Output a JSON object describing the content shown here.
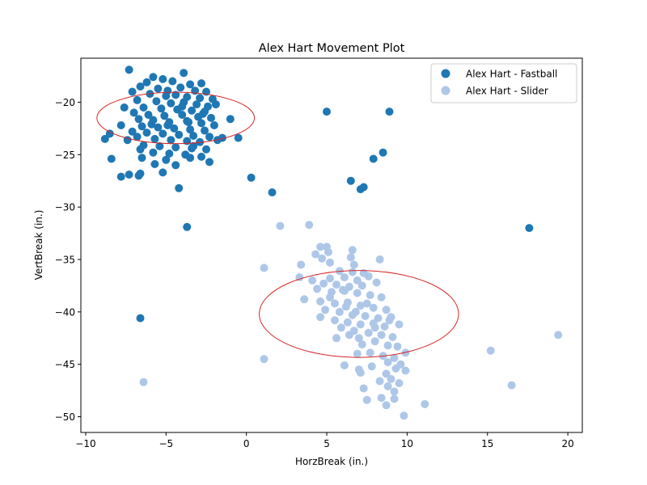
{
  "chart_data": {
    "type": "scatter",
    "title": "Alex Hart Movement Plot",
    "xlabel": "HorzBreak (in.)",
    "ylabel": "VertBreak (in.)",
    "xlim": [
      -10.3,
      20.9
    ],
    "ylim": [
      -51.5,
      -15.8
    ],
    "xticks": [
      -10,
      -5,
      0,
      5,
      10,
      15,
      20
    ],
    "yticks": [
      -50,
      -45,
      -40,
      -35,
      -30,
      -25,
      -20
    ],
    "grid": false,
    "legend_position": "top-right",
    "colors": {
      "fastball": "#1f77b4",
      "slider": "#aec7e8",
      "ellipse": "#d62728"
    },
    "ellipses": [
      {
        "series": "Alex Hart - Fastball",
        "center": [
          -4.4,
          -21.5
        ],
        "width": 4.9,
        "height": 4.9
      },
      {
        "series": "Alex Hart - Slider",
        "center": [
          7.0,
          -40.2
        ],
        "width": 6.2,
        "height": 8.3
      }
    ],
    "series": [
      {
        "name": "Alex Hart - Fastball",
        "color": "#1f77b4",
        "points": [
          [
            -7.3,
            -16.9
          ],
          [
            -3.9,
            -17.2
          ],
          [
            -5.8,
            -17.6
          ],
          [
            -5.2,
            -17.8
          ],
          [
            -6.2,
            -18.1
          ],
          [
            -4.6,
            -18.0
          ],
          [
            -3.5,
            -18.3
          ],
          [
            -2.8,
            -18.2
          ],
          [
            -6.6,
            -18.5
          ],
          [
            -5.5,
            -18.7
          ],
          [
            -4.9,
            -18.9
          ],
          [
            -4.1,
            -18.6
          ],
          [
            -3.2,
            -18.9
          ],
          [
            -2.5,
            -19.0
          ],
          [
            -7.1,
            -19.0
          ],
          [
            -6.0,
            -19.2
          ],
          [
            -5.0,
            -19.4
          ],
          [
            -4.4,
            -19.3
          ],
          [
            -3.7,
            -19.5
          ],
          [
            -2.9,
            -19.6
          ],
          [
            -2.1,
            -19.7
          ],
          [
            -6.8,
            -19.8
          ],
          [
            -5.6,
            -19.9
          ],
          [
            -4.7,
            -20.1
          ],
          [
            -3.9,
            -20.0
          ],
          [
            -3.1,
            -20.2
          ],
          [
            -2.4,
            -20.4
          ],
          [
            -7.6,
            -20.5
          ],
          [
            -6.4,
            -20.5
          ],
          [
            -5.3,
            -20.6
          ],
          [
            -4.3,
            -20.7
          ],
          [
            -3.4,
            -20.8
          ],
          [
            -2.6,
            -20.9
          ],
          [
            -1.9,
            -20.2
          ],
          [
            -7.0,
            -21.0
          ],
          [
            -6.1,
            -21.2
          ],
          [
            -5.1,
            -21.3
          ],
          [
            -4.0,
            -21.2
          ],
          [
            -3.0,
            -21.4
          ],
          [
            -2.2,
            -21.5
          ],
          [
            -6.7,
            -21.6
          ],
          [
            -5.8,
            -21.7
          ],
          [
            -4.8,
            -21.9
          ],
          [
            -3.7,
            -21.8
          ],
          [
            -2.8,
            -22.0
          ],
          [
            -2.0,
            -22.2
          ],
          [
            -7.8,
            -22.2
          ],
          [
            -6.5,
            -22.3
          ],
          [
            -5.5,
            -22.4
          ],
          [
            -4.5,
            -22.5
          ],
          [
            -3.5,
            -22.6
          ],
          [
            -2.6,
            -22.7
          ],
          [
            -7.1,
            -22.8
          ],
          [
            -6.2,
            -22.9
          ],
          [
            -5.2,
            -23.0
          ],
          [
            -4.2,
            -23.1
          ],
          [
            -3.3,
            -23.2
          ],
          [
            -2.3,
            -23.3
          ],
          [
            -8.5,
            -23.0
          ],
          [
            -6.8,
            -23.3
          ],
          [
            -5.7,
            -23.5
          ],
          [
            -4.7,
            -23.6
          ],
          [
            -3.7,
            -23.7
          ],
          [
            -2.9,
            -23.8
          ],
          [
            -1.8,
            -23.6
          ],
          [
            -7.4,
            -23.6
          ],
          [
            -6.4,
            -24.1
          ],
          [
            -5.4,
            -24.2
          ],
          [
            -4.4,
            -24.3
          ],
          [
            -3.4,
            -24.4
          ],
          [
            -2.5,
            -24.5
          ],
          [
            -6.6,
            -24.5
          ],
          [
            -5.8,
            -24.8
          ],
          [
            -4.8,
            -24.9
          ],
          [
            -3.8,
            -25.0
          ],
          [
            -2.8,
            -25.2
          ],
          [
            -6.5,
            -25.3
          ],
          [
            -5.0,
            -25.5
          ],
          [
            -3.5,
            -25.3
          ],
          [
            -2.3,
            -25.7
          ],
          [
            -5.7,
            -25.9
          ],
          [
            -4.4,
            -26.0
          ],
          [
            -5.2,
            -26.7
          ],
          [
            -6.6,
            -26.8
          ],
          [
            -7.3,
            -26.9
          ],
          [
            -6.7,
            -27.0
          ],
          [
            -7.8,
            -27.1
          ],
          [
            -8.8,
            -23.5
          ],
          [
            -8.4,
            -25.4
          ],
          [
            -1.0,
            -21.6
          ],
          [
            -1.5,
            -23.4
          ],
          [
            -0.5,
            -23.4
          ],
          [
            -3.3,
            -24.2
          ],
          [
            -2.7,
            -21.1
          ],
          [
            -4.9,
            -22.2
          ],
          [
            -4.0,
            -20.4
          ],
          [
            -3.6,
            -21.9
          ],
          [
            -5.9,
            -22.1
          ],
          [
            -4.2,
            -28.2
          ],
          [
            -3.7,
            -31.9
          ],
          [
            -6.6,
            -40.6
          ],
          [
            0.3,
            -27.2
          ],
          [
            1.6,
            -28.6
          ],
          [
            5.0,
            -20.9
          ],
          [
            8.9,
            -20.9
          ],
          [
            8.5,
            -24.8
          ],
          [
            7.9,
            -25.4
          ],
          [
            6.5,
            -27.5
          ],
          [
            7.1,
            -28.3
          ],
          [
            7.3,
            -28.1
          ],
          [
            17.6,
            -32.0
          ]
        ]
      },
      {
        "name": "Alex Hart - Slider",
        "color": "#aec7e8",
        "points": [
          [
            3.9,
            -31.7
          ],
          [
            2.1,
            -31.8
          ],
          [
            1.1,
            -35.8
          ],
          [
            4.6,
            -33.8
          ],
          [
            5.0,
            -33.8
          ],
          [
            5.1,
            -34.3
          ],
          [
            4.3,
            -34.5
          ],
          [
            4.7,
            -34.9
          ],
          [
            5.2,
            -35.3
          ],
          [
            6.6,
            -34.1
          ],
          [
            6.5,
            -34.8
          ],
          [
            8.3,
            -35.0
          ],
          [
            6.7,
            -35.5
          ],
          [
            3.4,
            -35.5
          ],
          [
            5.8,
            -36.1
          ],
          [
            6.6,
            -36.2
          ],
          [
            7.3,
            -36.3
          ],
          [
            5.2,
            -36.8
          ],
          [
            6.1,
            -36.7
          ],
          [
            6.9,
            -37.0
          ],
          [
            7.6,
            -36.6
          ],
          [
            3.3,
            -36.7
          ],
          [
            4.1,
            -37.0
          ],
          [
            4.8,
            -37.3
          ],
          [
            5.6,
            -37.4
          ],
          [
            6.4,
            -37.6
          ],
          [
            7.2,
            -37.5
          ],
          [
            8.1,
            -37.2
          ],
          [
            4.4,
            -37.8
          ],
          [
            5.3,
            -38.1
          ],
          [
            6.1,
            -38.0
          ],
          [
            6.9,
            -38.2
          ],
          [
            7.7,
            -38.4
          ],
          [
            8.4,
            -38.6
          ],
          [
            3.6,
            -38.8
          ],
          [
            4.6,
            -39.0
          ],
          [
            5.5,
            -39.2
          ],
          [
            6.3,
            -39.1
          ],
          [
            7.1,
            -39.4
          ],
          [
            7.9,
            -39.6
          ],
          [
            8.7,
            -39.8
          ],
          [
            4.9,
            -39.8
          ],
          [
            5.8,
            -40.0
          ],
          [
            6.6,
            -40.3
          ],
          [
            7.4,
            -40.4
          ],
          [
            8.2,
            -40.6
          ],
          [
            9.0,
            -40.5
          ],
          [
            4.6,
            -40.5
          ],
          [
            5.5,
            -40.8
          ],
          [
            6.3,
            -41.0
          ],
          [
            7.1,
            -41.2
          ],
          [
            7.9,
            -41.1
          ],
          [
            8.6,
            -41.4
          ],
          [
            9.5,
            -41.2
          ],
          [
            5.9,
            -41.5
          ],
          [
            6.7,
            -41.8
          ],
          [
            7.6,
            -42.0
          ],
          [
            8.4,
            -42.2
          ],
          [
            9.1,
            -42.4
          ],
          [
            5.6,
            -42.5
          ],
          [
            6.4,
            -42.2
          ],
          [
            7.2,
            -43.1
          ],
          [
            8.0,
            -42.8
          ],
          [
            8.8,
            -43.2
          ],
          [
            9.4,
            -43.3
          ],
          [
            6.9,
            -44.0
          ],
          [
            7.7,
            -43.9
          ],
          [
            8.5,
            -44.2
          ],
          [
            9.2,
            -44.4
          ],
          [
            9.9,
            -43.9
          ],
          [
            8.8,
            -44.8
          ],
          [
            9.6,
            -45.0
          ],
          [
            6.1,
            -45.1
          ],
          [
            7.0,
            -45.5
          ],
          [
            7.8,
            -45.2
          ],
          [
            8.7,
            -45.9
          ],
          [
            9.3,
            -45.4
          ],
          [
            9.9,
            -45.6
          ],
          [
            7.1,
            -45.8
          ],
          [
            8.3,
            -46.6
          ],
          [
            9.0,
            -46.4
          ],
          [
            9.5,
            -46.8
          ],
          [
            7.3,
            -47.3
          ],
          [
            8.8,
            -47.1
          ],
          [
            9.2,
            -47.6
          ],
          [
            8.4,
            -48.2
          ],
          [
            9.2,
            -48.3
          ],
          [
            7.5,
            -48.4
          ],
          [
            8.7,
            -48.9
          ],
          [
            9.8,
            -49.9
          ],
          [
            11.1,
            -48.8
          ],
          [
            1.1,
            -44.5
          ],
          [
            15.2,
            -43.7
          ],
          [
            16.5,
            -47.0
          ],
          [
            19.4,
            -42.2
          ],
          [
            -6.4,
            -46.7
          ],
          [
            6.0,
            -37.9
          ],
          [
            7.5,
            -39.2
          ],
          [
            6.8,
            -40.0
          ],
          [
            8.0,
            -41.5
          ],
          [
            7.0,
            -42.5
          ],
          [
            6.2,
            -39.5
          ],
          [
            8.9,
            -40.8
          ],
          [
            5.2,
            -38.6
          ]
        ]
      }
    ]
  }
}
